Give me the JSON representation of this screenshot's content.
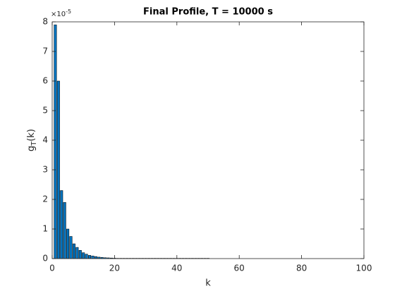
{
  "chart_data": {
    "type": "bar",
    "title": "Final Profile, T = 10000 s",
    "x_label": "k",
    "y_label": {
      "base": "g",
      "sub": "T",
      "rest": "(k)"
    },
    "y_exponent": {
      "base": "×10",
      "power": "-5"
    },
    "x": [
      1,
      2,
      3,
      4,
      5,
      6,
      7,
      8,
      9,
      10,
      11,
      12,
      13,
      14,
      15,
      16,
      17,
      18,
      19,
      20,
      21,
      22,
      23,
      24,
      25,
      26,
      27,
      28,
      29,
      30,
      31,
      32,
      33,
      34,
      35,
      36,
      37,
      38,
      39,
      40,
      41,
      42,
      43,
      44,
      45,
      46,
      47,
      48,
      49,
      50
    ],
    "values": [
      7.9,
      6.0,
      2.3,
      1.9,
      1.0,
      0.75,
      0.5,
      0.38,
      0.28,
      0.2,
      0.15,
      0.11,
      0.09,
      0.07,
      0.05,
      0.04,
      0.03,
      0.025,
      0.02,
      0.015,
      0.01,
      0.01,
      0.01,
      0.01,
      0.01,
      0.01,
      0.01,
      0.01,
      0.01,
      0.01,
      0.01,
      0.01,
      0.01,
      0.01,
      0.01,
      0.01,
      0.01,
      0.01,
      0.01,
      0.01,
      0.01,
      0.01,
      0.01,
      0.01,
      0.01,
      0.01,
      0.01,
      0.01,
      0.01,
      0.01
    ],
    "color": "#0072bd",
    "edge_color": "#000000",
    "xlim": [
      0,
      100
    ],
    "xticks": [
      0,
      20,
      40,
      60,
      80,
      100
    ],
    "ylim": [
      0,
      8
    ],
    "yticks": [
      0,
      1,
      2,
      3,
      4,
      5,
      6,
      7,
      8
    ]
  }
}
